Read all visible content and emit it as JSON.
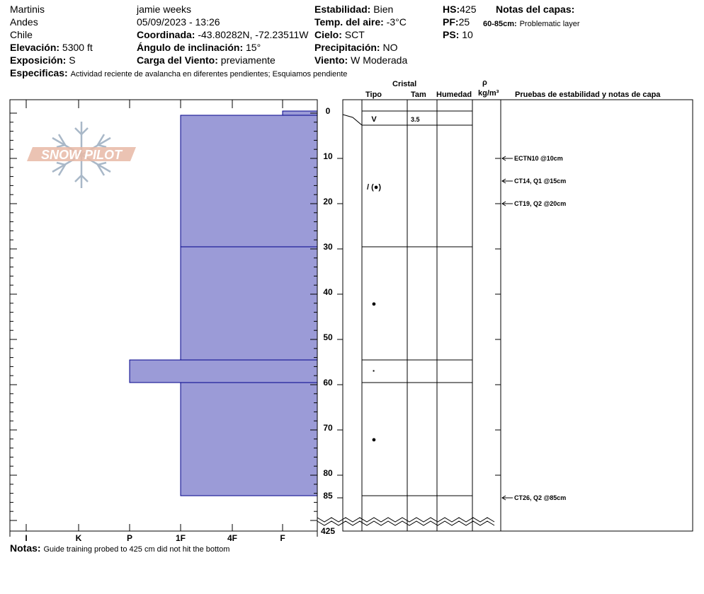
{
  "header": {
    "location1": "Martinis",
    "location2": "Andes",
    "location3": "Chile",
    "elevation_label": "Elevación:",
    "elevation_value": "5300 ft",
    "exposure_label": "Exposición:",
    "exposure_value": "S",
    "specifics_label": "Especificas:",
    "specifics_value": "Actividad reciente de avalancha en diferentes pendientes;  Esquiamos pendiente",
    "observer": "jamie weeks",
    "datetime": "05/09/2023 - 13:26",
    "coord_label": "Coordinada:",
    "coord_value": "-43.80282N, -72.23511W",
    "slope_label": "Ángulo de inclinación:",
    "slope_value": "15°",
    "wind_load_label": "Carga del Viento:",
    "wind_load_value": "previamente",
    "stability_label": "Estabilidad:",
    "stability_value": "Bien",
    "air_temp_label": "Temp. del aire:",
    "air_temp_value": "-3°C",
    "sky_label": "Cielo:",
    "sky_value": "SCT",
    "precip_label": "Precipitación:",
    "precip_value": "NO",
    "wind_label": "Viento:",
    "wind_value": "W Moderada",
    "hs_label": "HS:",
    "hs_value": "425",
    "pf_label": "PF:",
    "pf_value": "25",
    "ps_label": "PS:",
    "ps_value": "10",
    "layer_notes_title": "Notas del capas:",
    "layer_note_range": "60-85cm:",
    "layer_note_text": "Problematic layer"
  },
  "logo_text": "SNOW PILOT",
  "columns": {
    "crystal": "Cristal",
    "type": "Tipo",
    "size": "Tam",
    "moisture": "Humedad",
    "rho": "ρ",
    "density_unit": "kg/m³",
    "stability_notes": "Pruebas de estabilidad y notas de capa"
  },
  "hardness_scale": [
    "I",
    "K",
    "P",
    "1F",
    "4F",
    "F"
  ],
  "depth_ticks": [
    "0",
    "10",
    "20",
    "30",
    "40",
    "50",
    "60",
    "70",
    "80",
    "85",
    "425"
  ],
  "layers": [
    {
      "top": 0,
      "bottom": 1,
      "hardness": "F"
    },
    {
      "top": 1,
      "bottom": 30,
      "hardness": "1F"
    },
    {
      "top": 30,
      "bottom": 55,
      "hardness": "1F"
    },
    {
      "top": 55,
      "bottom": 60,
      "hardness": "P"
    },
    {
      "top": 60,
      "bottom": 85,
      "hardness": "1F"
    }
  ],
  "crystal_rows": [
    {
      "symbol": "V",
      "size": "3.5"
    },
    {
      "symbol": "/ (●)",
      "size": ""
    },
    {
      "symbol": "●",
      "size": ""
    },
    {
      "symbol": "·",
      "size": ""
    },
    {
      "symbol": "●",
      "size": ""
    }
  ],
  "tests": [
    {
      "depth": 10,
      "text": "ECTN10 @10cm"
    },
    {
      "depth": 15,
      "text": "CT14, Q1 @15cm"
    },
    {
      "depth": 20,
      "text": "CT19, Q2 @20cm"
    },
    {
      "depth": 85,
      "text": "CT26, Q2 @85cm"
    }
  ],
  "notes_label": "Notas:",
  "notes_value": "Guide training probed to 425 cm did not hit the bottom",
  "colors": {
    "layer_fill": "#9b9bd7",
    "layer_stroke": "#00008b",
    "logo": "#e8b8a6",
    "snowflake": "#a9b8c8"
  }
}
